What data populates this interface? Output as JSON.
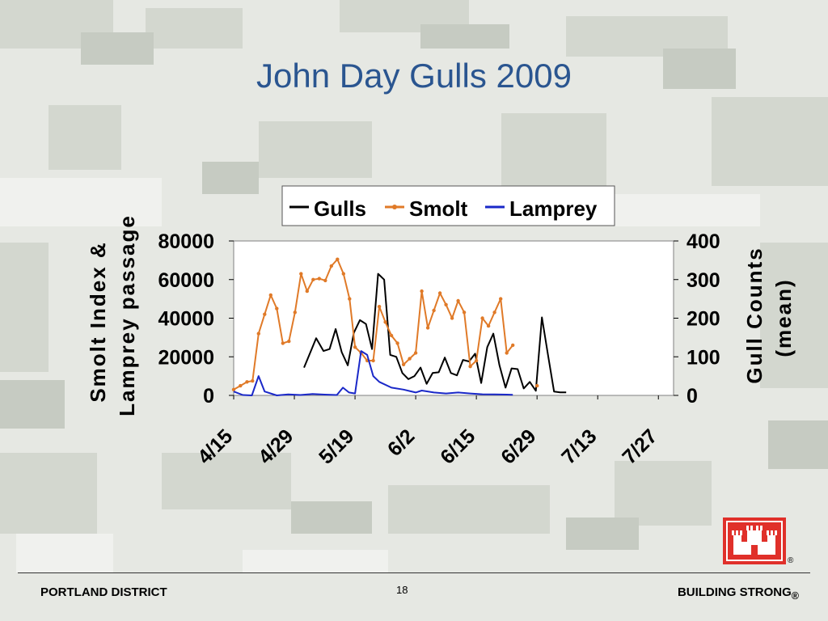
{
  "slide": {
    "title": "John Day Gulls 2009",
    "page_number": "18",
    "footer_left": "PORTLAND DISTRICT",
    "footer_right": "BUILDING STRONG",
    "registered_mark": "®"
  },
  "logo": {
    "name": "castle-logo",
    "color": "#e0302a"
  },
  "colors": {
    "gulls": "#000000",
    "smolt": "#e07a28",
    "lamprey": "#1a28c8",
    "title": "#2a5590"
  },
  "chart_data": {
    "type": "line",
    "title": "",
    "ylabel": [
      "Smolt Index &",
      "Lamprey passage"
    ],
    "y2label": [
      "Gull Counts",
      "(mean)"
    ],
    "ylim": [
      0,
      80000
    ],
    "y2lim": [
      0,
      400
    ],
    "yticks": [
      "80000",
      "60000",
      "40000",
      "20000",
      "0"
    ],
    "y2ticks": [
      "400",
      "300",
      "200",
      "100",
      "0"
    ],
    "x_tick_labels": [
      "4/15",
      "4/29",
      "5/19",
      "6/2",
      "6/15",
      "6/29",
      "7/13",
      "7/27"
    ],
    "xlim": [
      0,
      7.25
    ],
    "legend": {
      "position": "top",
      "entries": [
        "Gulls",
        "Smolt",
        "Lamprey"
      ]
    },
    "grid": false,
    "series": [
      {
        "name": "Gulls",
        "axis": "right",
        "marker": "none",
        "points": [
          [
            1.16,
            72
          ],
          [
            1.26,
            110
          ],
          [
            1.36,
            148
          ],
          [
            1.48,
            115
          ],
          [
            1.58,
            120
          ],
          [
            1.68,
            172
          ],
          [
            1.78,
            112
          ],
          [
            1.88,
            78
          ],
          [
            1.98,
            162
          ],
          [
            2.08,
            195
          ],
          [
            2.18,
            185
          ],
          [
            2.28,
            120
          ],
          [
            2.38,
            315
          ],
          [
            2.48,
            300
          ],
          [
            2.58,
            105
          ],
          [
            2.68,
            100
          ],
          [
            2.78,
            58
          ],
          [
            2.88,
            42
          ],
          [
            2.98,
            50
          ],
          [
            3.08,
            72
          ],
          [
            3.18,
            30
          ],
          [
            3.28,
            58
          ],
          [
            3.38,
            60
          ],
          [
            3.48,
            98
          ],
          [
            3.58,
            58
          ],
          [
            3.68,
            52
          ],
          [
            3.78,
            92
          ],
          [
            3.88,
            88
          ],
          [
            3.98,
            108
          ],
          [
            4.08,
            32
          ],
          [
            4.18,
            125
          ],
          [
            4.28,
            160
          ],
          [
            4.38,
            78
          ],
          [
            4.48,
            20
          ],
          [
            4.58,
            70
          ],
          [
            4.68,
            68
          ],
          [
            4.78,
            18
          ],
          [
            4.88,
            35
          ],
          [
            4.98,
            12
          ],
          [
            5.08,
            202
          ],
          [
            5.18,
            105
          ],
          [
            5.28,
            10
          ],
          [
            5.38,
            8
          ],
          [
            5.48,
            8
          ]
        ]
      },
      {
        "name": "Smolt",
        "axis": "left",
        "marker": "dot",
        "points": [
          [
            0.0,
            3000
          ],
          [
            0.11,
            5000
          ],
          [
            0.22,
            7000
          ],
          [
            0.31,
            7500
          ],
          [
            0.41,
            32000
          ],
          [
            0.51,
            42000
          ],
          [
            0.61,
            52000
          ],
          [
            0.71,
            45000
          ],
          [
            0.81,
            27000
          ],
          [
            0.91,
            28000
          ],
          [
            1.01,
            43000
          ],
          [
            1.11,
            63000
          ],
          [
            1.21,
            54000
          ],
          [
            1.31,
            60000
          ],
          [
            1.41,
            60500
          ],
          [
            1.51,
            59500
          ],
          [
            1.61,
            67000
          ],
          [
            1.71,
            70500
          ],
          [
            1.81,
            63000
          ],
          [
            1.91,
            50000
          ],
          [
            2.0,
            25000
          ],
          [
            2.1,
            22000
          ],
          [
            2.2,
            18000
          ],
          [
            2.3,
            18000
          ],
          [
            2.4,
            46000
          ],
          [
            2.5,
            38000
          ],
          [
            2.6,
            31000
          ],
          [
            2.7,
            27000
          ],
          [
            2.8,
            16000
          ],
          [
            2.9,
            19000
          ],
          [
            3.0,
            22000
          ],
          [
            3.1,
            54000
          ],
          [
            3.2,
            35000
          ],
          [
            3.3,
            44000
          ],
          [
            3.4,
            53000
          ],
          [
            3.5,
            47000
          ],
          [
            3.6,
            40000
          ],
          [
            3.7,
            49000
          ],
          [
            3.8,
            43000
          ],
          [
            3.9,
            15000
          ],
          [
            4.0,
            18000
          ],
          [
            4.1,
            40000
          ],
          [
            4.2,
            36000
          ],
          [
            4.3,
            43000
          ],
          [
            4.4,
            50000
          ],
          [
            4.5,
            22000
          ],
          [
            4.6,
            26000
          ],
          [
            5.0,
            5000
          ]
        ]
      },
      {
        "name": "Lamprey",
        "axis": "left",
        "marker": "none",
        "points": [
          [
            0.0,
            2000
          ],
          [
            0.15,
            200
          ],
          [
            0.3,
            0
          ],
          [
            0.41,
            10000
          ],
          [
            0.51,
            2000
          ],
          [
            0.71,
            0
          ],
          [
            0.9,
            500
          ],
          [
            1.1,
            200
          ],
          [
            1.3,
            700
          ],
          [
            1.5,
            400
          ],
          [
            1.7,
            200
          ],
          [
            1.8,
            4000
          ],
          [
            1.9,
            1500
          ],
          [
            2.0,
            1000
          ],
          [
            2.1,
            23000
          ],
          [
            2.2,
            21000
          ],
          [
            2.3,
            10000
          ],
          [
            2.4,
            7000
          ],
          [
            2.6,
            4000
          ],
          [
            2.8,
            3000
          ],
          [
            3.0,
            1500
          ],
          [
            3.1,
            2500
          ],
          [
            3.3,
            1500
          ],
          [
            3.5,
            1000
          ],
          [
            3.7,
            1500
          ],
          [
            3.9,
            1000
          ],
          [
            4.1,
            600
          ],
          [
            4.3,
            500
          ],
          [
            4.5,
            400
          ],
          [
            4.6,
            300
          ]
        ]
      }
    ]
  }
}
